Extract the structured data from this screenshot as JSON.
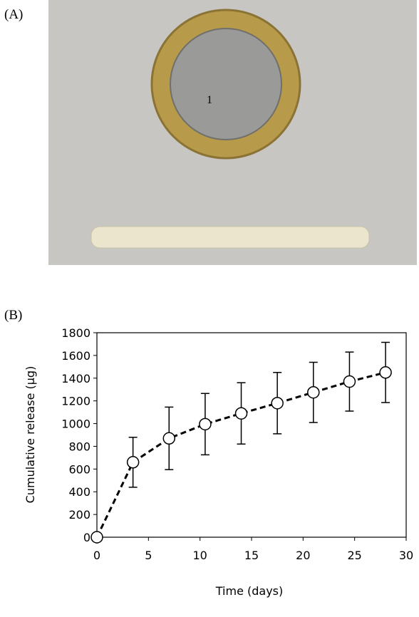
{
  "panel_labels": [
    "(A)",
    "(B)"
  ],
  "chart_data": {
    "type": "line",
    "x_label": "Time (days)",
    "y_label": "Cumulative release (µg)",
    "x": [
      0,
      3.5,
      7,
      10.5,
      14,
      17.5,
      21,
      24.5,
      28
    ],
    "values": [
      0,
      660,
      870,
      995,
      1090,
      1180,
      1275,
      1370,
      1450
    ],
    "errors": [
      0,
      220,
      275,
      270,
      270,
      270,
      265,
      260,
      265
    ],
    "color": "#000000",
    "xlim": [
      0,
      30
    ],
    "xticks": [
      0,
      5,
      10,
      15,
      20,
      25,
      30
    ],
    "ylim": [
      0,
      1800
    ],
    "yticks": [
      0,
      200,
      400,
      600,
      800,
      1000,
      1200,
      1400,
      1600,
      1800
    ]
  }
}
